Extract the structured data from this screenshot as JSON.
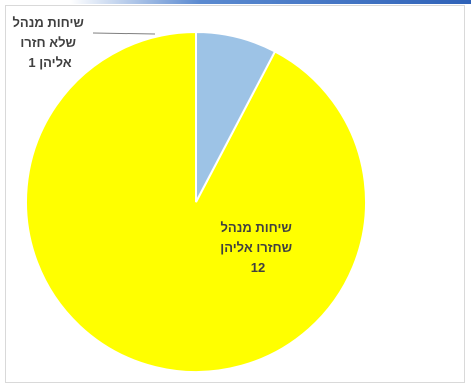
{
  "chart_data": {
    "type": "pie",
    "title": "",
    "slices": [
      {
        "label_lines": [
          "שיחות מנהל",
          "שחזרו אליהן",
          "12"
        ],
        "value": 12,
        "color": "#ffff00"
      },
      {
        "label_lines": [
          "שיחות מנהל",
          "שלא חזרו",
          "אליהן  1"
        ],
        "value": 1,
        "color": "#9dc3e6"
      }
    ],
    "start_angle_deg": 0,
    "direction": "counterclockwise",
    "slice_border": "#ffffff",
    "leader_line_color": "#7f7f7f"
  }
}
